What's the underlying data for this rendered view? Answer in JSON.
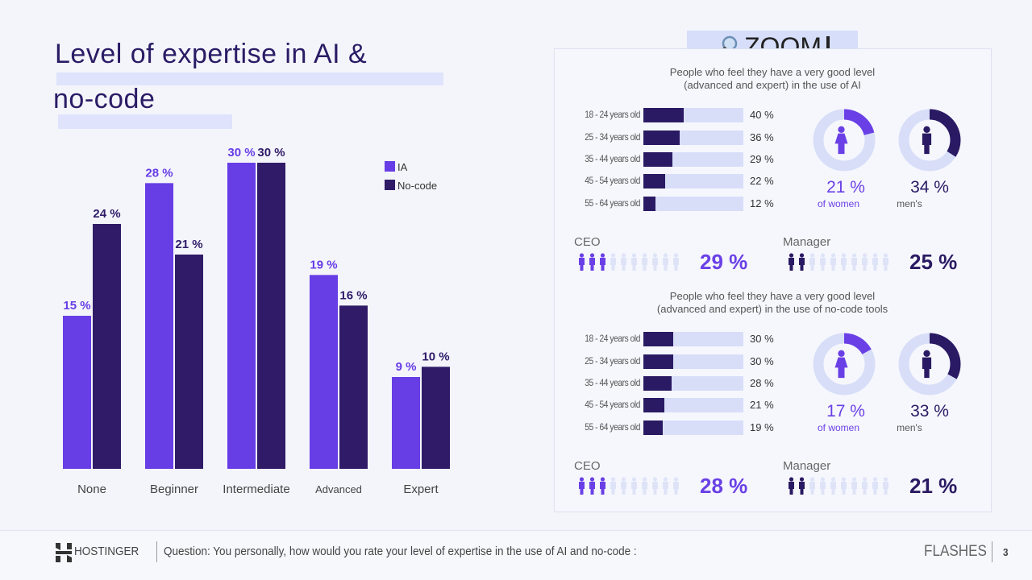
{
  "title": {
    "line1": "Level of expertise in AI &",
    "line2": "no-code"
  },
  "chart_data": {
    "type": "bar",
    "title": "Level of expertise in AI & no-code",
    "categories": [
      "None",
      "Beginner",
      "Intermediate",
      "Advanced",
      "Expert"
    ],
    "series": [
      {
        "name": "IA",
        "values": [
          15,
          28,
          30,
          19,
          9
        ],
        "color": "#673de6"
      },
      {
        "name": "No-code",
        "values": [
          24,
          21,
          30,
          16,
          10
        ],
        "color": "#2f1b68"
      }
    ],
    "value_suffix": " %",
    "ylim": [
      0,
      30
    ],
    "legend_position": "top-right",
    "grid": false
  },
  "zoom": {
    "label": "ZOOM",
    "icon": "magnifier-icon"
  },
  "ai_panel": {
    "subtitle1": "People who feel they have a very good level",
    "subtitle2": "(advanced and expert) in the use of AI",
    "ages": [
      {
        "label": "18 - 24 years old",
        "value": 40,
        "text": "40 %"
      },
      {
        "label": "25 - 34 years old",
        "value": 36,
        "text": "36 %"
      },
      {
        "label": "35 - 44 years old",
        "value": 29,
        "text": "29 %"
      },
      {
        "label": "45 - 54 years old",
        "value": 22,
        "text": "22 %"
      },
      {
        "label": "55 - 64 years old",
        "value": 12,
        "text": "12 %"
      }
    ],
    "women": {
      "value": 21,
      "text": "21 %",
      "label": "of women"
    },
    "men": {
      "value": 34,
      "text": "34 %",
      "label": "men's"
    },
    "ceo": {
      "label": "CEO",
      "text": "29 %",
      "filled": 3
    },
    "manager": {
      "label": "Manager",
      "text": "25 %",
      "filled": 2
    }
  },
  "nocode_panel": {
    "subtitle1": "People who feel they have a very good level",
    "subtitle2": "(advanced and expert) in the use of no-code tools",
    "ages": [
      {
        "label": "18 - 24 years old",
        "value": 30,
        "text": "30 %"
      },
      {
        "label": "25 - 34 years old",
        "value": 30,
        "text": "30 %"
      },
      {
        "label": "35 - 44 years old",
        "value": 28,
        "text": "28 %"
      },
      {
        "label": "45 - 54 years old",
        "value": 21,
        "text": "21 %"
      },
      {
        "label": "55 - 64 years old",
        "value": 19,
        "text": "19 %"
      }
    ],
    "women": {
      "value": 17,
      "text": "17 %",
      "label": "of women"
    },
    "men": {
      "value": 33,
      "text": "33 %",
      "label": "men's"
    },
    "ceo": {
      "label": "CEO",
      "text": "28 %",
      "filled": 3
    },
    "manager": {
      "label": "Manager",
      "text": "21 %",
      "filled": 2
    }
  },
  "footer": {
    "brand": "HOSTINGER",
    "question": "Question: You personally, how would you rate your level of expertise in the use of AI and no-code :",
    "section": "FLASHES",
    "page": "3"
  },
  "colors": {
    "accent": "#673de6",
    "dark": "#2a1a63",
    "track": "#d8def8"
  }
}
